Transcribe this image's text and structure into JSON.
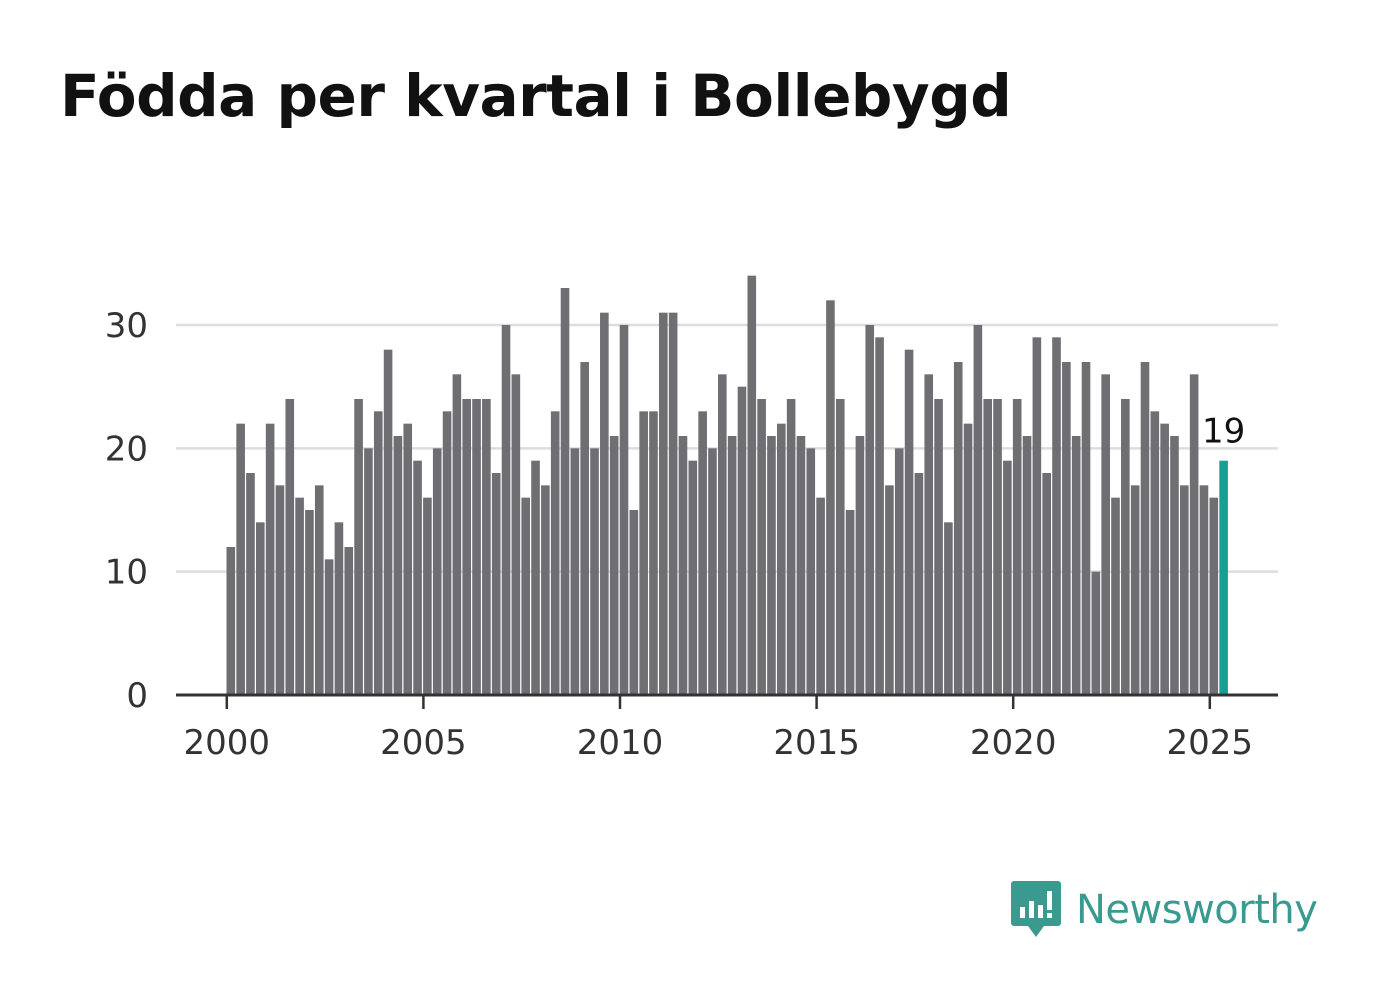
{
  "title": "Födda per kvartal i Bollebygd",
  "brand": {
    "name": "Newsworthy",
    "icon": "newsworthy-logo-icon"
  },
  "colors": {
    "bar": "#6e6e73",
    "highlight": "#1a9e94",
    "grid": "#dddddd",
    "axis": "#333333",
    "brand": "#3a9a90"
  },
  "chart_data": {
    "type": "bar",
    "title": "Födda per kvartal i Bollebygd",
    "xlabel": "",
    "ylabel": "",
    "x_start": "2000 Q1",
    "x_ticks": [
      "2000",
      "2005",
      "2010",
      "2015",
      "2020",
      "2025"
    ],
    "y_ticks": [
      0,
      10,
      20,
      30
    ],
    "ylim": [
      0,
      35
    ],
    "grid": true,
    "highlight_last": true,
    "last_value_label": "19",
    "values": [
      12,
      22,
      18,
      14,
      22,
      17,
      24,
      16,
      15,
      17,
      11,
      14,
      12,
      24,
      20,
      23,
      28,
      21,
      22,
      19,
      16,
      20,
      23,
      26,
      24,
      24,
      24,
      18,
      30,
      26,
      16,
      19,
      17,
      23,
      33,
      20,
      27,
      20,
      31,
      21,
      30,
      15,
      23,
      23,
      31,
      31,
      21,
      19,
      23,
      20,
      26,
      21,
      25,
      34,
      24,
      21,
      22,
      24,
      21,
      20,
      16,
      32,
      24,
      15,
      21,
      30,
      29,
      17,
      20,
      28,
      18,
      26,
      24,
      14,
      27,
      22,
      30,
      24,
      24,
      19,
      24,
      21,
      29,
      18,
      29,
      27,
      21,
      27,
      10,
      26,
      16,
      24,
      17,
      27,
      23,
      22,
      21,
      17,
      26,
      17,
      16,
      19
    ]
  }
}
